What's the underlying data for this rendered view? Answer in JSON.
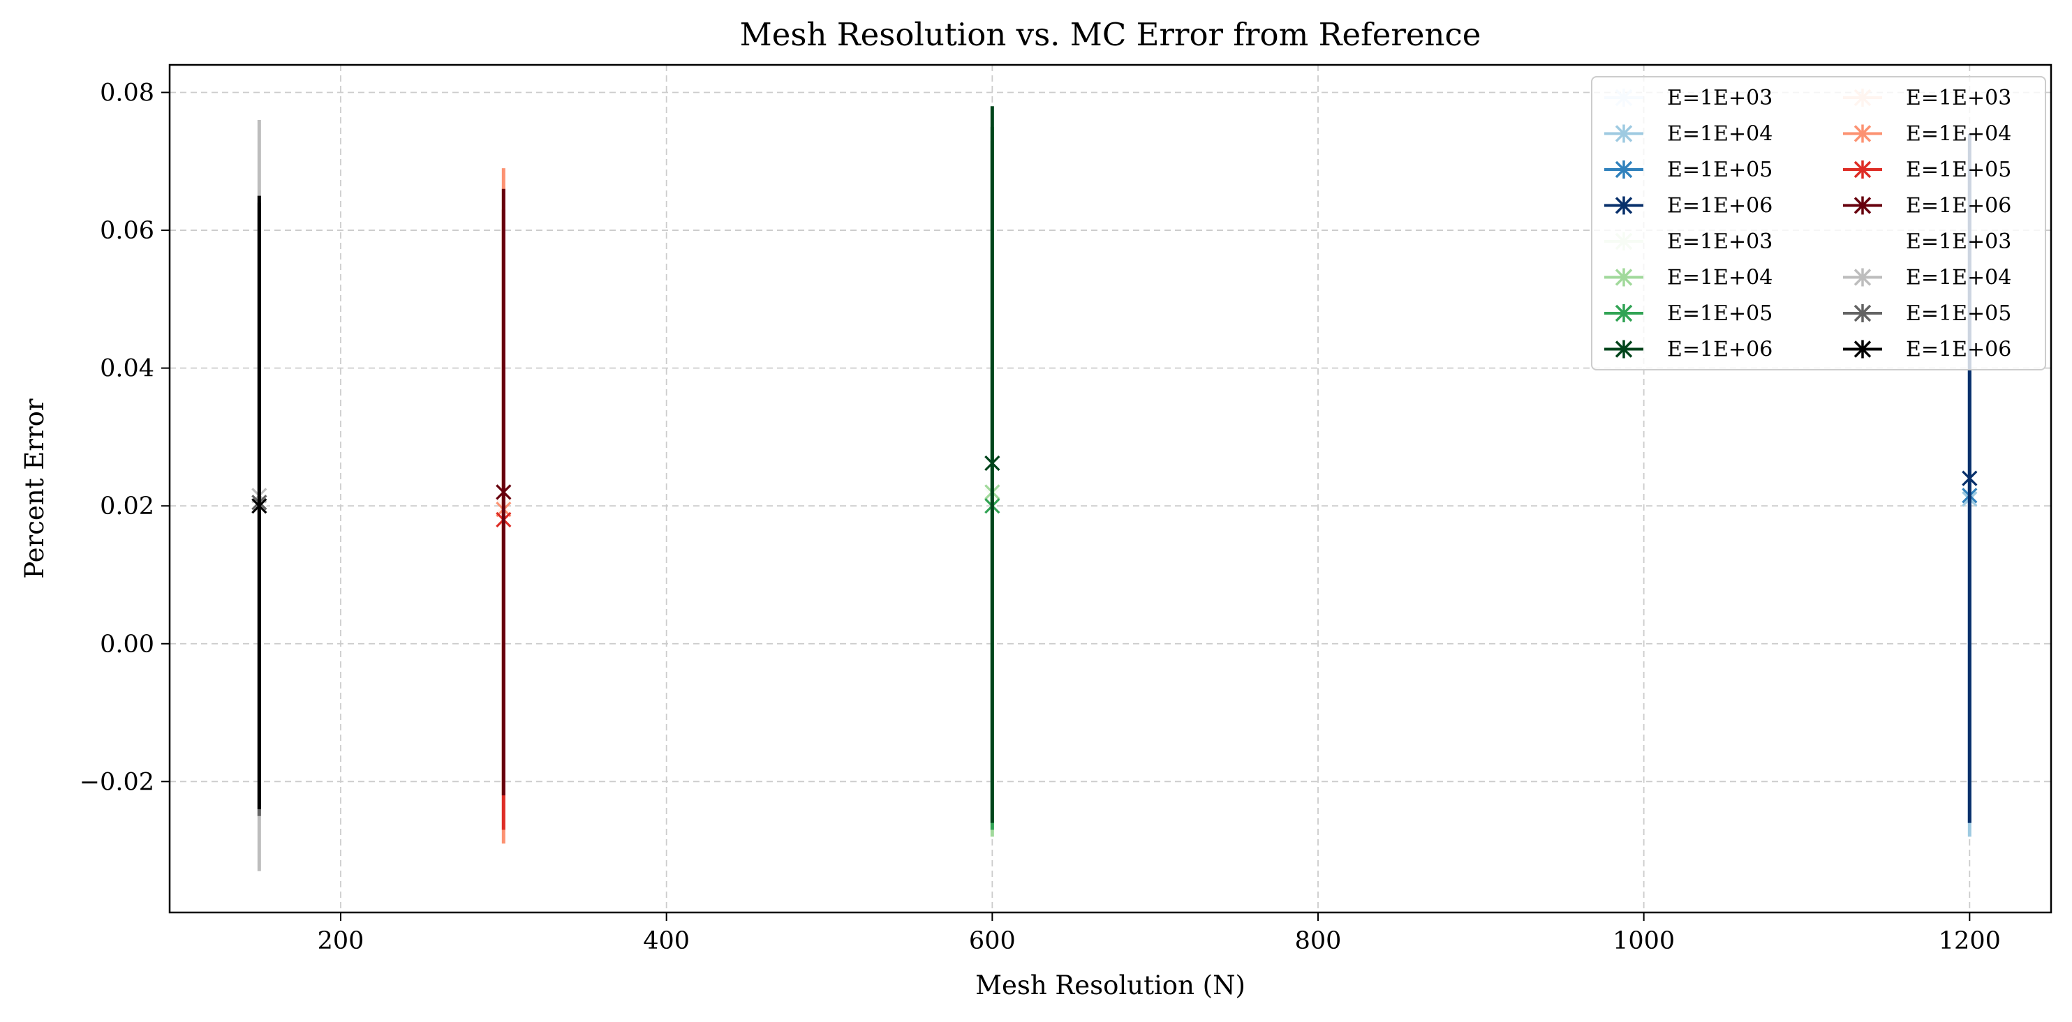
{
  "chart_data": {
    "type": "scatter",
    "title": "Mesh Resolution vs. MC Error from Reference",
    "xlabel": "Mesh Resolution (N)",
    "ylabel": "Percent Error",
    "xlim": [
      95,
      1250
    ],
    "ylim": [
      -0.039,
      0.084
    ],
    "xticks": [
      200,
      400,
      600,
      800,
      1000,
      1200
    ],
    "yticks": [
      -0.02,
      0.0,
      0.02,
      0.04,
      0.06,
      0.08
    ],
    "xtick_labels": [
      "200",
      "400",
      "600",
      "800",
      "1000",
      "1200"
    ],
    "ytick_labels": [
      "−0.02",
      "0.00",
      "0.02",
      "0.04",
      "0.06",
      "0.08"
    ],
    "grid": true,
    "marker": "x",
    "legend": {
      "placement": "top-right",
      "columns": 2
    },
    "series": [
      {
        "name": "E=1E+03",
        "color": "#f7fbff",
        "x": 1200,
        "y": 0.0215,
        "yerr_low": -0.027,
        "yerr_high": 0.066
      },
      {
        "name": "E=1E+04",
        "color": "#9ecae1",
        "x": 1200,
        "y": 0.021,
        "yerr_low": -0.028,
        "yerr_high": 0.07
      },
      {
        "name": "E=1E+05",
        "color": "#3182bd",
        "x": 1200,
        "y": 0.0215,
        "yerr_low": -0.026,
        "yerr_high": 0.069
      },
      {
        "name": "E=1E+06",
        "color": "#08306b",
        "x": 1200,
        "y": 0.024,
        "yerr_low": -0.026,
        "yerr_high": 0.074
      },
      {
        "name": "E=1E+03",
        "color": "#f7fcf5",
        "x": 600,
        "y": 0.0215,
        "yerr_low": -0.027,
        "yerr_high": 0.072
      },
      {
        "name": "E=1E+04",
        "color": "#a1d99b",
        "x": 600,
        "y": 0.022,
        "yerr_low": -0.028,
        "yerr_high": 0.073
      },
      {
        "name": "E=1E+05",
        "color": "#31a354",
        "x": 600,
        "y": 0.02,
        "yerr_low": -0.027,
        "yerr_high": 0.075
      },
      {
        "name": "E=1E+06",
        "color": "#00441b",
        "x": 600,
        "y": 0.0262,
        "yerr_low": -0.026,
        "yerr_high": 0.078
      },
      {
        "name": "E=1E+03",
        "color": "#fff5f0",
        "x": 300,
        "y": 0.02,
        "yerr_low": -0.027,
        "yerr_high": 0.066
      },
      {
        "name": "E=1E+04",
        "color": "#fc9272",
        "x": 300,
        "y": 0.0195,
        "yerr_low": -0.029,
        "yerr_high": 0.069
      },
      {
        "name": "E=1E+05",
        "color": "#de2d26",
        "x": 300,
        "y": 0.018,
        "yerr_low": -0.027,
        "yerr_high": 0.063
      },
      {
        "name": "E=1E+06",
        "color": "#67000d",
        "x": 300,
        "y": 0.022,
        "yerr_low": -0.022,
        "yerr_high": 0.066
      },
      {
        "name": "E=1E+03",
        "color": "#ffffff",
        "x": 150,
        "y": 0.021,
        "yerr_low": -0.027,
        "yerr_high": 0.068
      },
      {
        "name": "E=1E+04",
        "color": "#bdbdbd",
        "x": 150,
        "y": 0.0215,
        "yerr_low": -0.033,
        "yerr_high": 0.076
      },
      {
        "name": "E=1E+05",
        "color": "#636363",
        "x": 150,
        "y": 0.0205,
        "yerr_low": -0.025,
        "yerr_high": 0.064
      },
      {
        "name": "E=1E+06",
        "color": "#000000",
        "x": 150,
        "y": 0.02,
        "yerr_low": -0.024,
        "yerr_high": 0.065
      }
    ]
  }
}
